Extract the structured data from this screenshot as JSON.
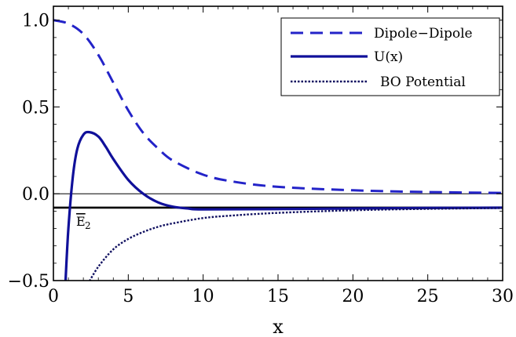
{
  "chart_data": {
    "type": "line",
    "xlabel": "x",
    "ylabel": "",
    "xlim": [
      0,
      30
    ],
    "ylim": [
      -0.5,
      1.08
    ],
    "x_ticks": [
      0,
      5,
      10,
      15,
      20,
      25,
      30
    ],
    "x_tick_labels": [
      "0",
      "5",
      "10",
      "15",
      "20",
      "25",
      "30"
    ],
    "y_ticks": [
      -0.5,
      0.0,
      0.5,
      1.0
    ],
    "y_tick_labels": [
      "−0.5",
      "0.0",
      "0.5",
      "1.0"
    ],
    "grid": false,
    "legend_position": "top-right",
    "legend": [
      {
        "label": "Dipole−Dipole",
        "style": "dashed"
      },
      {
        "label": "U(x)",
        "style": "solid"
      },
      {
        "label": "BO Potential",
        "style": "dotted"
      }
    ],
    "series": [
      {
        "name": "Dipole−Dipole",
        "style": "dashed",
        "color": "#2323c8",
        "x": [
          0,
          1,
          2,
          3,
          4,
          5,
          6,
          7,
          8,
          10,
          12,
          15,
          20,
          25,
          30
        ],
        "y": [
          1.0,
          0.98,
          0.92,
          0.8,
          0.64,
          0.48,
          0.35,
          0.26,
          0.19,
          0.11,
          0.07,
          0.04,
          0.02,
          0.01,
          0.005
        ]
      },
      {
        "name": "U(x)",
        "style": "solid",
        "color": "#10109a",
        "x": [
          0.8,
          1.0,
          1.3,
          1.6,
          2.0,
          2.4,
          3.0,
          3.5,
          4.0,
          5.0,
          6.0,
          7.0,
          8.0,
          9.0,
          10,
          15,
          20,
          25,
          30
        ],
        "y": [
          -0.52,
          -0.2,
          0.1,
          0.26,
          0.34,
          0.355,
          0.33,
          0.27,
          0.2,
          0.08,
          0.0,
          -0.05,
          -0.075,
          -0.085,
          -0.09,
          -0.088,
          -0.085,
          -0.082,
          -0.08
        ]
      },
      {
        "name": "BO Potential",
        "style": "dotted",
        "color": "#101060",
        "x": [
          2.3,
          3.0,
          4.0,
          5.0,
          6.0,
          7.0,
          8.0,
          10,
          12,
          15,
          20,
          25,
          30
        ],
        "y": [
          -0.52,
          -0.42,
          -0.32,
          -0.26,
          -0.22,
          -0.19,
          -0.17,
          -0.14,
          -0.125,
          -0.11,
          -0.095,
          -0.087,
          -0.082
        ]
      }
    ],
    "reference_lines": [
      {
        "y": 0.0,
        "style": "thin"
      },
      {
        "y": -0.08,
        "style": "thick",
        "label": "E",
        "label_subscript": "2",
        "label_overline": true
      }
    ]
  }
}
